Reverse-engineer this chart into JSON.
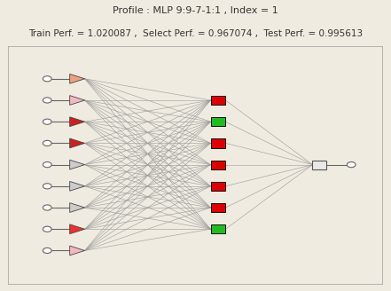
{
  "title_line1": "Profile : MLP 9:9-7-1:1 , Index = 1",
  "title_line2": "Train Perf. = 1.020087 ,  Select Perf. = 0.967074 ,  Test Perf. = 0.995613",
  "bg_color": "#f0ebe0",
  "panel_bg": "#ffffff",
  "n_inputs": 9,
  "n_hidden": 7,
  "n_output": 1,
  "input_triangle_colors": [
    "#f0a080",
    "#f5b8c0",
    "#cc2020",
    "#cc2020",
    "#cccccc",
    "#cccccc",
    "#cccccc",
    "#ee3030",
    "#f5b8c0"
  ],
  "hidden_rect_colors": [
    "#dd0000",
    "#22bb22",
    "#dd0000",
    "#dd0000",
    "#dd0000",
    "#dd0000",
    "#22bb22"
  ],
  "output_rect_color": "#e8e8e8",
  "line_color": "#999999",
  "line_width": 0.4,
  "node_circle_color": "#ffffff",
  "node_circle_edge": "#666666",
  "title_fontsize": 8,
  "subtitle_fontsize": 7.5
}
